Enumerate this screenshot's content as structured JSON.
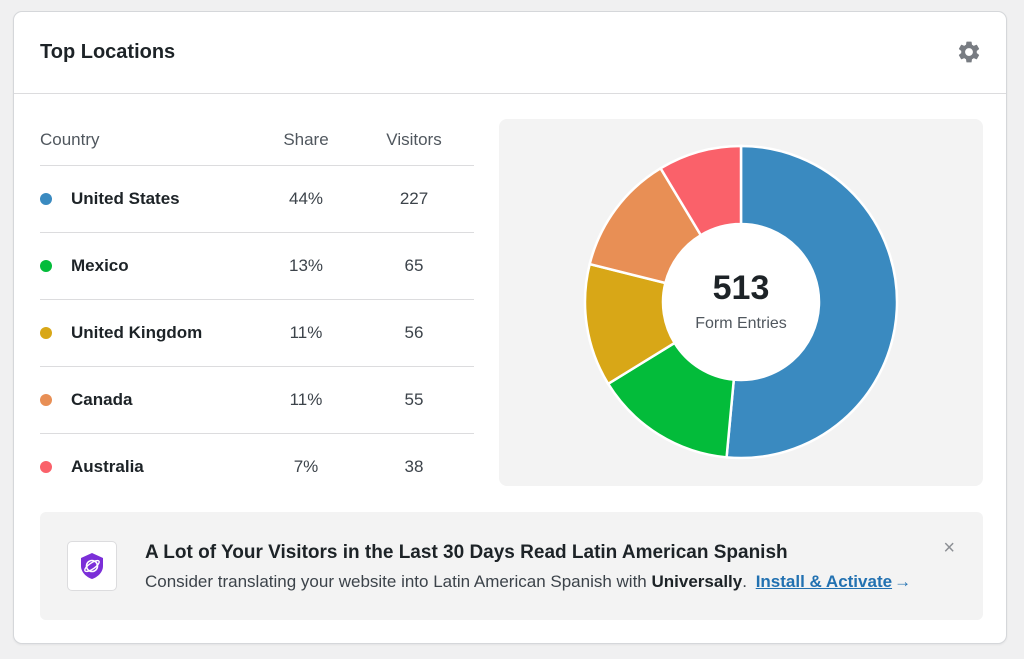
{
  "header": {
    "title": "Top Locations",
    "settings_icon": "gear-icon"
  },
  "table": {
    "columns": {
      "country": "Country",
      "share": "Share",
      "visitors": "Visitors"
    },
    "rows": [
      {
        "country": "United States",
        "share": "44%",
        "visitors": "227",
        "color": "#3a8ac0"
      },
      {
        "country": "Mexico",
        "share": "13%",
        "visitors": "65",
        "color": "#03bc3a"
      },
      {
        "country": "United Kingdom",
        "share": "11%",
        "visitors": "56",
        "color": "#d8a717"
      },
      {
        "country": "Canada",
        "share": "11%",
        "visitors": "55",
        "color": "#e88f55"
      },
      {
        "country": "Australia",
        "share": "7%",
        "visitors": "38",
        "color": "#fa616a"
      }
    ]
  },
  "chart_data": {
    "type": "pie",
    "donut": true,
    "center_value": "513",
    "center_caption": "Form Entries",
    "categories": [
      "United States",
      "Mexico",
      "United Kingdom",
      "Canada",
      "Australia"
    ],
    "values": [
      227,
      65,
      56,
      55,
      38
    ],
    "colors": [
      "#3a8ac0",
      "#03bc3a",
      "#d8a717",
      "#e88f55",
      "#fa616a"
    ],
    "legend": "none"
  },
  "notice": {
    "title": "A Lot of Your Visitors in the Last 30 Days Read Latin American Spanish",
    "text_before": "Consider translating your website into Latin American Spanish with",
    "product": "Universally",
    "text_after": ".",
    "link_label": "Install & Activate",
    "arrow": "→",
    "close": "×",
    "logo_color": "#7b2fd8"
  }
}
